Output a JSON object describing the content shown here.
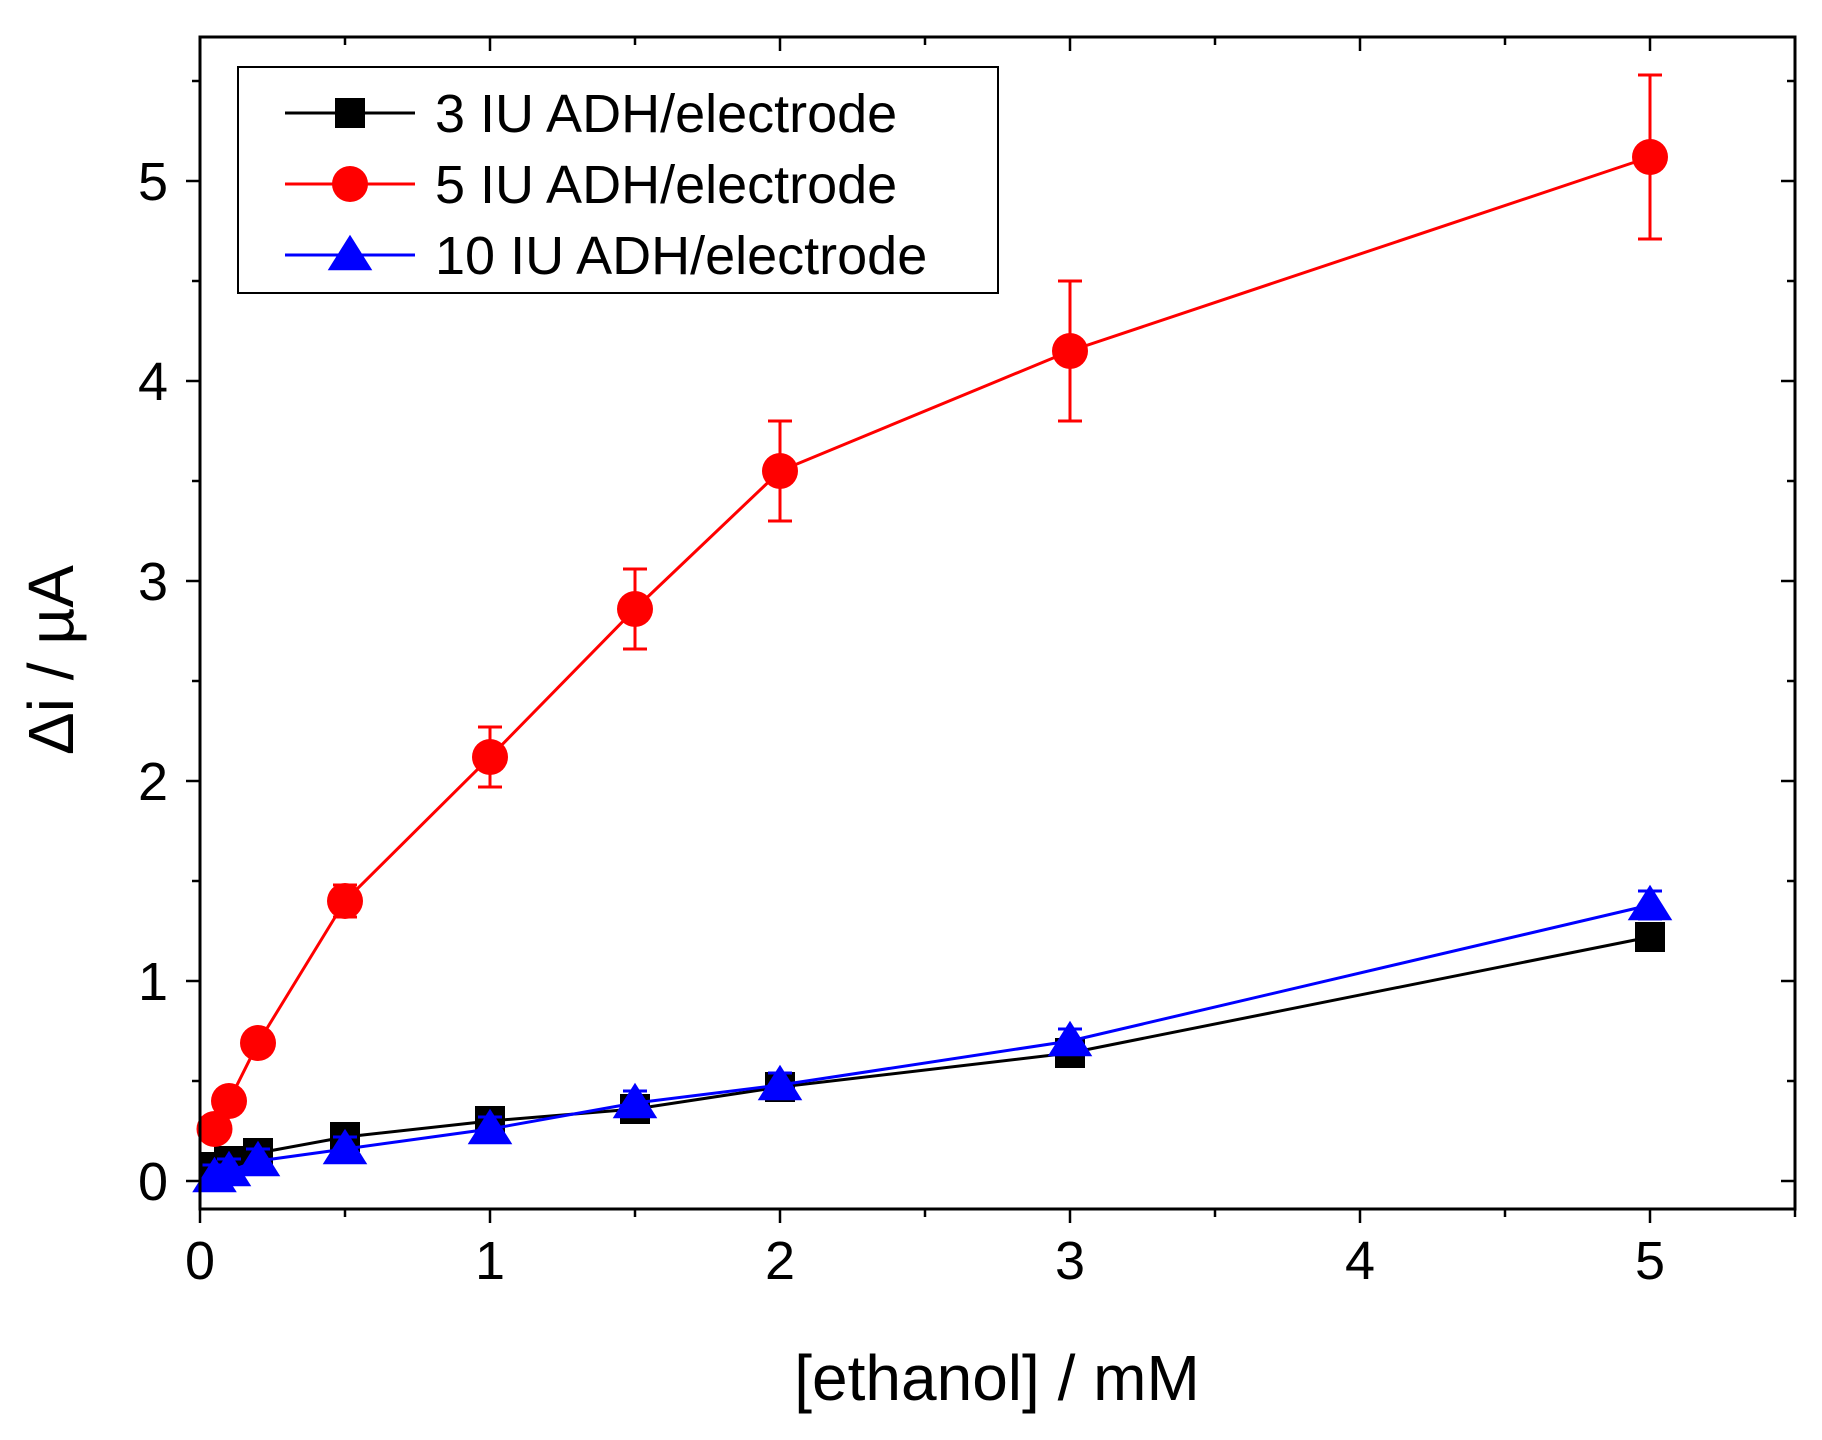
{
  "chart_data": {
    "type": "line",
    "xlabel": "[ethanol] / mM",
    "ylabel": "Δi / µA",
    "xlim": [
      0,
      5.5
    ],
    "ylim": [
      -0.14,
      5.72
    ],
    "xticks": [
      0,
      1,
      2,
      3,
      4,
      5
    ],
    "yticks": [
      0,
      1,
      2,
      3,
      4,
      5
    ],
    "x_minor_step": 0.5,
    "y_minor_step": 0.5,
    "legend_position": "top-left",
    "series": [
      {
        "name": "3 IU ADH/electrode",
        "color": "#000000",
        "marker": "square",
        "points": [
          {
            "x": 0.05,
            "y": 0.07,
            "err": 0.03
          },
          {
            "x": 0.1,
            "y": 0.1,
            "err": 0.03
          },
          {
            "x": 0.2,
            "y": 0.14,
            "err": 0.03
          },
          {
            "x": 0.5,
            "y": 0.22,
            "err": 0.03
          },
          {
            "x": 1.0,
            "y": 0.3,
            "err": 0.03
          },
          {
            "x": 1.5,
            "y": 0.36,
            "err": 0.03
          },
          {
            "x": 2.0,
            "y": 0.47,
            "err": 0.03
          },
          {
            "x": 3.0,
            "y": 0.64,
            "err": 0.03
          },
          {
            "x": 5.0,
            "y": 1.22,
            "err": 0.03
          }
        ]
      },
      {
        "name": "5 IU ADH/electrode",
        "color": "#ff0000",
        "marker": "circle",
        "points": [
          {
            "x": 0.05,
            "y": 0.26,
            "err": 0.05
          },
          {
            "x": 0.1,
            "y": 0.4,
            "err": 0.05
          },
          {
            "x": 0.2,
            "y": 0.69,
            "err": 0.05
          },
          {
            "x": 0.5,
            "y": 1.4,
            "err": 0.08
          },
          {
            "x": 1.0,
            "y": 2.12,
            "err": 0.15
          },
          {
            "x": 1.5,
            "y": 2.86,
            "err": 0.2
          },
          {
            "x": 2.0,
            "y": 3.55,
            "err": 0.25
          },
          {
            "x": 3.0,
            "y": 4.15,
            "err": 0.35
          },
          {
            "x": 5.0,
            "y": 5.12,
            "err": 0.41
          }
        ]
      },
      {
        "name": "10 IU ADH/electrode",
        "color": "#0000ff",
        "marker": "triangle",
        "points": [
          {
            "x": 0.05,
            "y": 0.02,
            "err": 0.06
          },
          {
            "x": 0.1,
            "y": 0.05,
            "err": 0.06
          },
          {
            "x": 0.2,
            "y": 0.1,
            "err": 0.06
          },
          {
            "x": 0.5,
            "y": 0.16,
            "err": 0.06
          },
          {
            "x": 1.0,
            "y": 0.26,
            "err": 0.06
          },
          {
            "x": 1.5,
            "y": 0.39,
            "err": 0.06
          },
          {
            "x": 2.0,
            "y": 0.48,
            "err": 0.06
          },
          {
            "x": 3.0,
            "y": 0.7,
            "err": 0.06
          },
          {
            "x": 5.0,
            "y": 1.38,
            "err": 0.07
          }
        ]
      }
    ]
  }
}
